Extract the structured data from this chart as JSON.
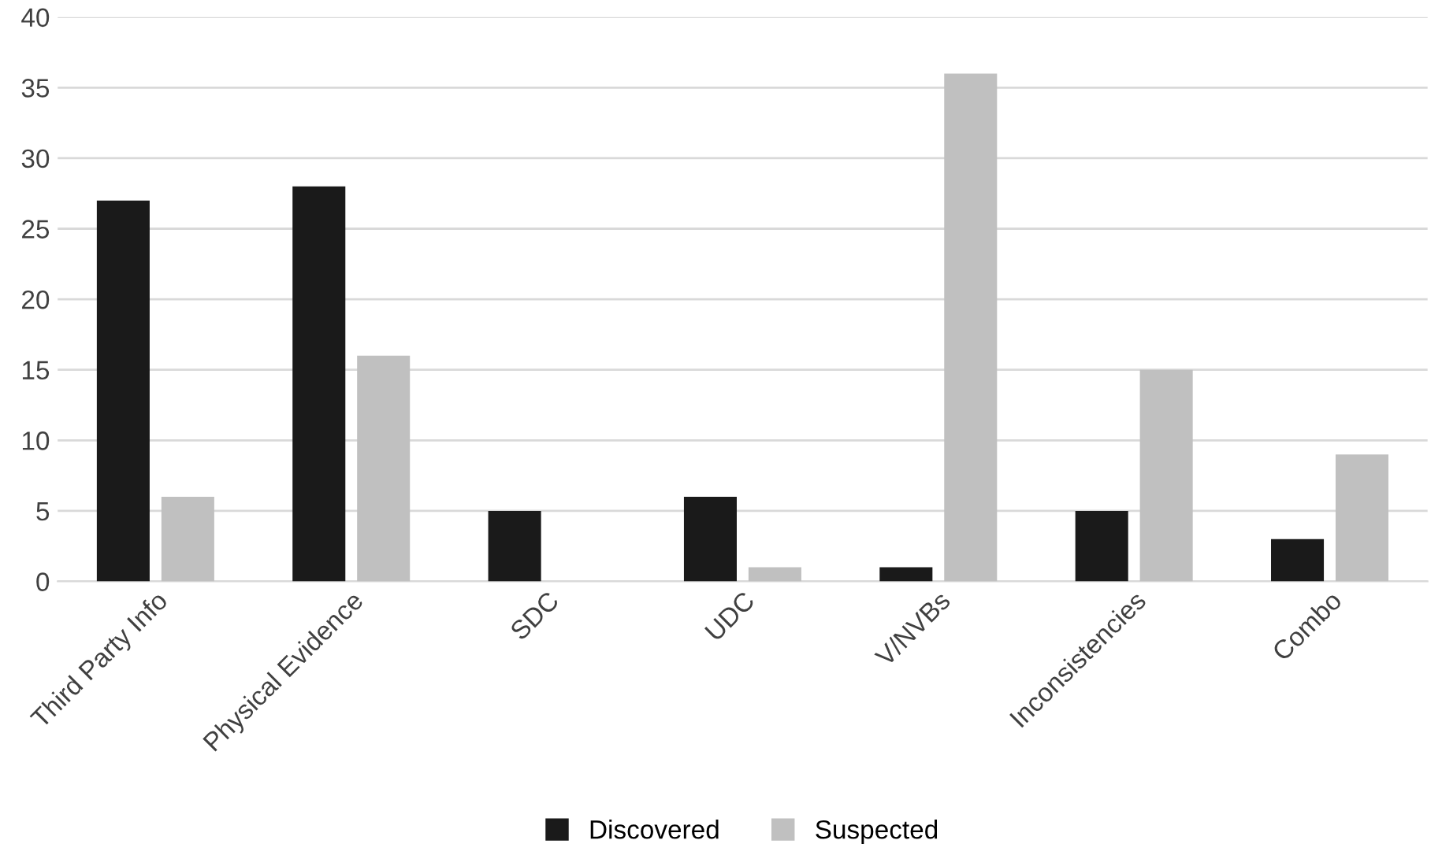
{
  "chart_data": {
    "type": "bar",
    "categories": [
      "Third Party Info",
      "Physical Evidence",
      "SDC",
      "UDC",
      "V/NVBs",
      "Inconsistencies",
      "Combo"
    ],
    "series": [
      {
        "name": "Discovered",
        "color": "#1a1a1a",
        "values": [
          27,
          28,
          5,
          6,
          1,
          5,
          3
        ]
      },
      {
        "name": "Suspected",
        "color": "#c0c0c0",
        "values": [
          6,
          16,
          0,
          1,
          36,
          15,
          9
        ]
      }
    ],
    "ylim": [
      0,
      40
    ],
    "yticks": [
      0,
      5,
      10,
      15,
      20,
      25,
      30,
      35,
      40
    ],
    "grid": "y",
    "legend": "bottom"
  }
}
